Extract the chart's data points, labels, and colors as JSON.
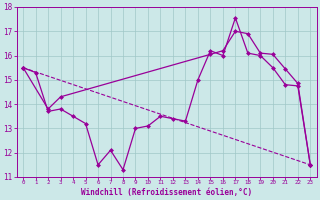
{
  "xlabel": "Windchill (Refroidissement éolien,°C)",
  "background_color": "#cce8e8",
  "line_color": "#990099",
  "grid_color": "#a0c8c8",
  "xlim": [
    -0.5,
    23.5
  ],
  "ylim": [
    11,
    18
  ],
  "xticks": [
    0,
    1,
    2,
    3,
    4,
    5,
    6,
    7,
    8,
    9,
    10,
    11,
    12,
    13,
    14,
    15,
    16,
    17,
    18,
    19,
    20,
    21,
    22,
    23
  ],
  "yticks": [
    11,
    12,
    13,
    14,
    15,
    16,
    17,
    18
  ],
  "series1_x": [
    0,
    1,
    2,
    3,
    4,
    5,
    6,
    7,
    8,
    9,
    10,
    11,
    12,
    13,
    14,
    15,
    16,
    17,
    18,
    19,
    20,
    21,
    22,
    23
  ],
  "series1_y": [
    15.5,
    15.3,
    13.7,
    13.8,
    13.5,
    13.2,
    11.5,
    12.1,
    11.3,
    13.0,
    13.1,
    13.5,
    13.4,
    13.3,
    15.0,
    16.2,
    16.0,
    17.55,
    16.1,
    16.0,
    15.5,
    14.8,
    14.75,
    11.5
  ],
  "series2_x": [
    0,
    23
  ],
  "series2_y": [
    15.5,
    11.5
  ],
  "series3_x": [
    0,
    2,
    3,
    15,
    16,
    17,
    18,
    19,
    20,
    21,
    22,
    23
  ],
  "series3_y": [
    15.5,
    13.8,
    14.3,
    16.05,
    16.2,
    17.0,
    16.9,
    16.1,
    16.05,
    15.45,
    14.85,
    11.5
  ]
}
